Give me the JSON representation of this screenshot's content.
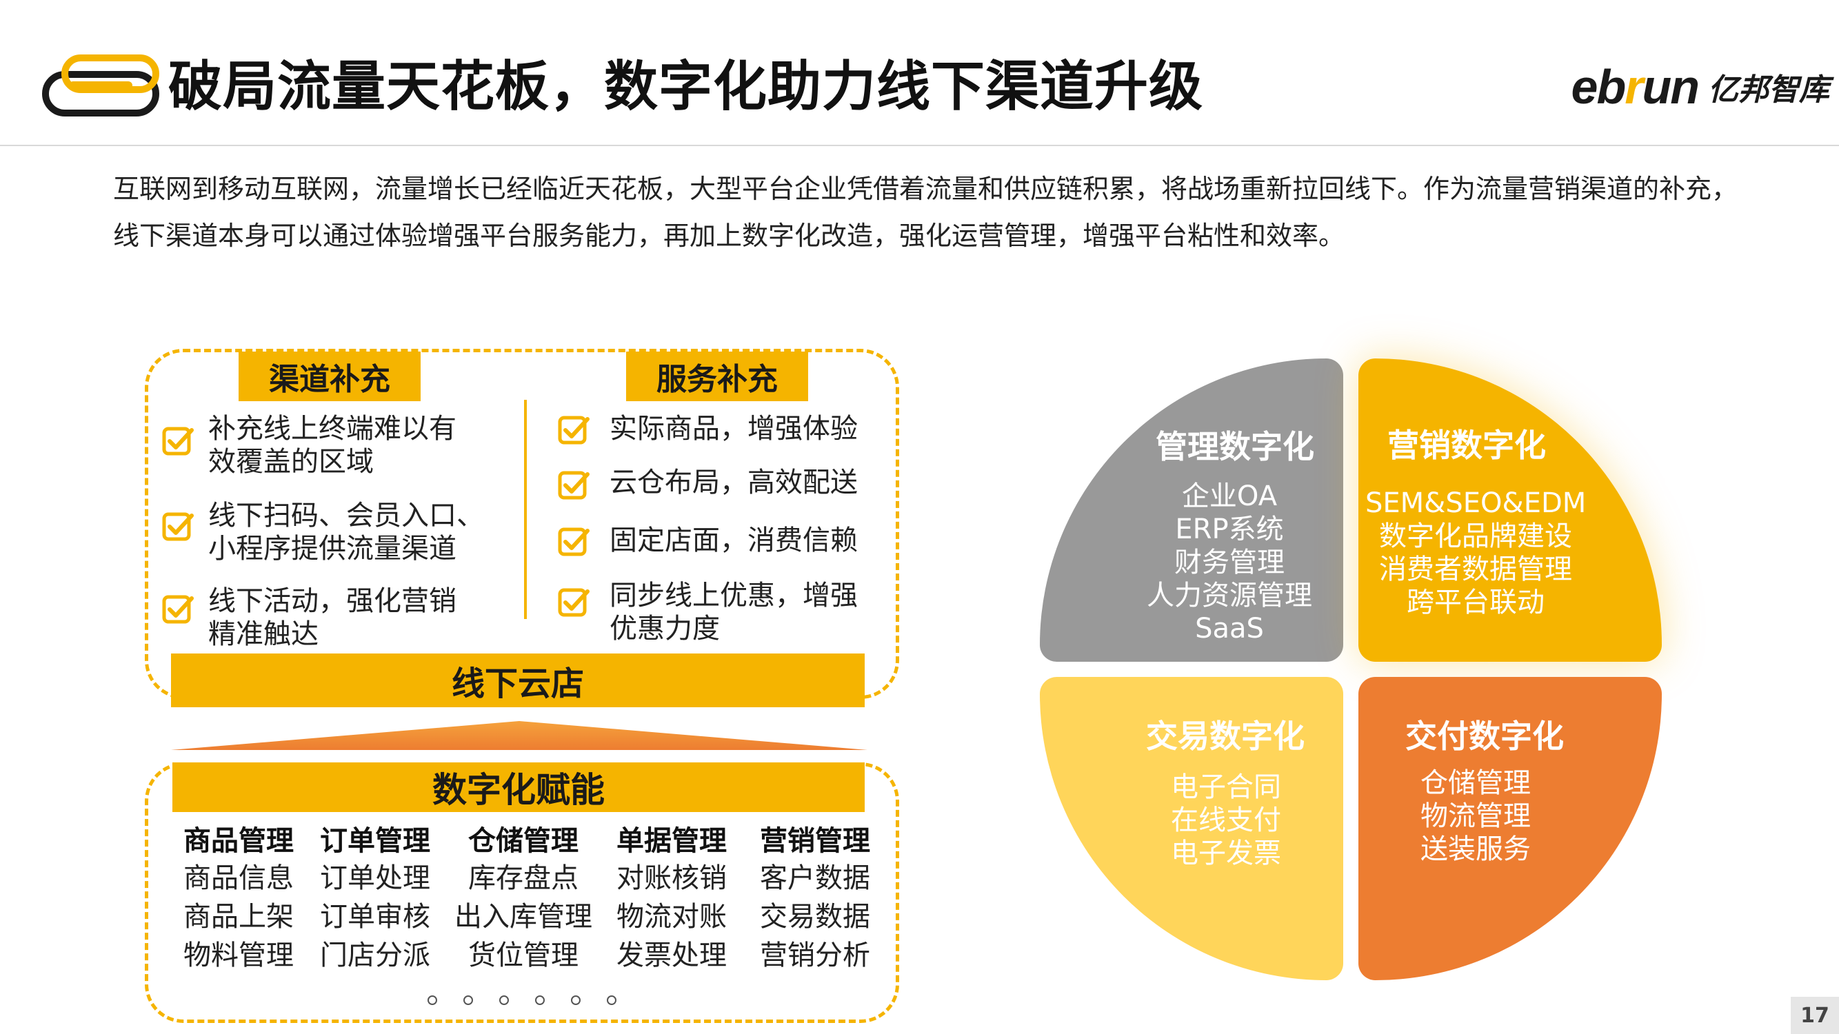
{
  "header": {
    "title": "破局流量天花板，数字化助力线下渠道升级",
    "brand_en_pre": "eb",
    "brand_en_r": "r",
    "brand_en_post": "un",
    "brand_cn": "亿邦智库"
  },
  "intro": "互联网到移动互联网，流量增长已经临近天花板，大型平台企业凭借着流量和供应链积累，将战场重新拉回线下。作为流量营销渠道的补充，线下渠道本身可以通过体验增强平台服务能力，再加上数字化改造，强化运营管理，增强平台粘性和效率。",
  "channel": {
    "label": "渠道补充",
    "items": [
      {
        "line1": "补充线上终端难以有",
        "line2": "效覆盖的区域"
      },
      {
        "line1": "线下扫码、会员入口、",
        "line2": "小程序提供流量渠道"
      },
      {
        "line1": "线下活动，强化营销",
        "line2": "精准触达"
      }
    ]
  },
  "service": {
    "label": "服务补充",
    "items": [
      {
        "line1": "实际商品，增强体验",
        "line2": ""
      },
      {
        "line1": "云仓布局，高效配送",
        "line2": ""
      },
      {
        "line1": "固定店面，消费信赖",
        "line2": ""
      },
      {
        "line1": "同步线上优惠，增强",
        "line2": "优惠力度"
      }
    ]
  },
  "offline_store": "线下云店",
  "digital": {
    "label": "数字化赋能",
    "columns": [
      {
        "head": "商品管理",
        "rows": [
          "商品信息",
          "商品上架",
          "物料管理"
        ]
      },
      {
        "head": "订单管理",
        "rows": [
          "订单处理",
          "订单审核",
          "门店分派"
        ]
      },
      {
        "head": "仓储管理",
        "rows": [
          "库存盘点",
          "出入库管理",
          "货位管理"
        ]
      },
      {
        "head": "单据管理",
        "rows": [
          "对账核销",
          "物流对账",
          "发票处理"
        ]
      },
      {
        "head": "营销管理",
        "rows": [
          "客户数据",
          "交易数据",
          "营销分析"
        ]
      }
    ]
  },
  "quadrants": {
    "management": {
      "title": "管理数字化",
      "lines": [
        "企业OA",
        "ERP系统",
        "财务管理",
        "人力资源管理",
        "SaaS"
      ],
      "color": "#999999"
    },
    "marketing": {
      "title": "营销数字化",
      "lines": [
        "SEM&SEO&EDM",
        "数字化品牌建设",
        "消费者数据管理",
        "跨平台联动"
      ],
      "color": "#f5b400"
    },
    "transaction": {
      "title": "交易数字化",
      "lines": [
        "电子合同",
        "在线支付",
        "电子发票"
      ],
      "color": "#ffd55a"
    },
    "delivery": {
      "title": "交付数字化",
      "lines": [
        "仓储管理",
        "物流管理",
        "送装服务"
      ],
      "color": "#ed7d31"
    }
  },
  "page_number": "17",
  "colors": {
    "accent": "#f5b400",
    "orange": "#ed7d31",
    "gray": "#999999",
    "light_yellow": "#ffd55a"
  }
}
